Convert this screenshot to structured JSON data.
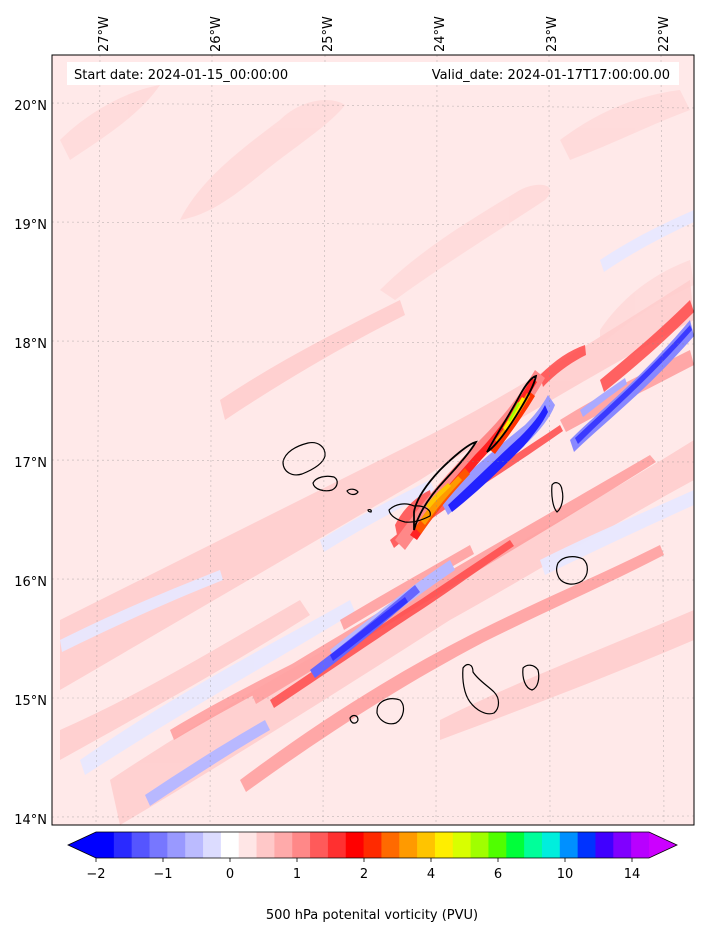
{
  "map": {
    "start_label": "Start date: 2024-01-15_00:00:00",
    "valid_label": "Valid_date: 2024-01-17T17:00:00.00",
    "lon_ticks": [
      "27°W",
      "26°W",
      "25°W",
      "24°W",
      "23°W",
      "22°W"
    ],
    "lat_ticks": [
      "20°N",
      "19°N",
      "18°N",
      "17°N",
      "16°N",
      "15°N",
      "14°N"
    ],
    "extent": {
      "lon_west": -27.4,
      "lon_east": -21.75,
      "lat_south": 13.95,
      "lat_north": 20.45
    },
    "field": "500 hPa potential vorticity",
    "background_color": "#ffe8e8",
    "features": {
      "positive_bands": "SW-NE oriented red bands across the domain",
      "negative_bands": "blue bands parallel to the red bands",
      "maximum": "orange-yellow-green filament near 23.5°W 17°N along the island chain"
    }
  },
  "colorbar": {
    "label": "500 hPa potenital vorticity (PVU)",
    "tick_labels": [
      "−2",
      "−1",
      "0",
      "1",
      "2",
      "4",
      "6",
      "10",
      "14"
    ],
    "colors": [
      "#0000ff",
      "#2a2aff",
      "#5555ff",
      "#7777ff",
      "#9999ff",
      "#bbbbff",
      "#dcdcff",
      "#ffffff",
      "#ffe6e6",
      "#ffc8c8",
      "#ffaaaa",
      "#ff8888",
      "#ff5a5a",
      "#ff3030",
      "#ff0000",
      "#ff2a00",
      "#ff6a00",
      "#ff9a00",
      "#ffc400",
      "#ffee00",
      "#d8ff00",
      "#a0ff00",
      "#50ff00",
      "#00ff3a",
      "#00ff9a",
      "#00eedd",
      "#0090ff",
      "#0033ff",
      "#4000ff",
      "#8000ff",
      "#b800ff"
    ],
    "extend_min_color": "#0000ff",
    "extend_max_color": "#cc00ff"
  }
}
